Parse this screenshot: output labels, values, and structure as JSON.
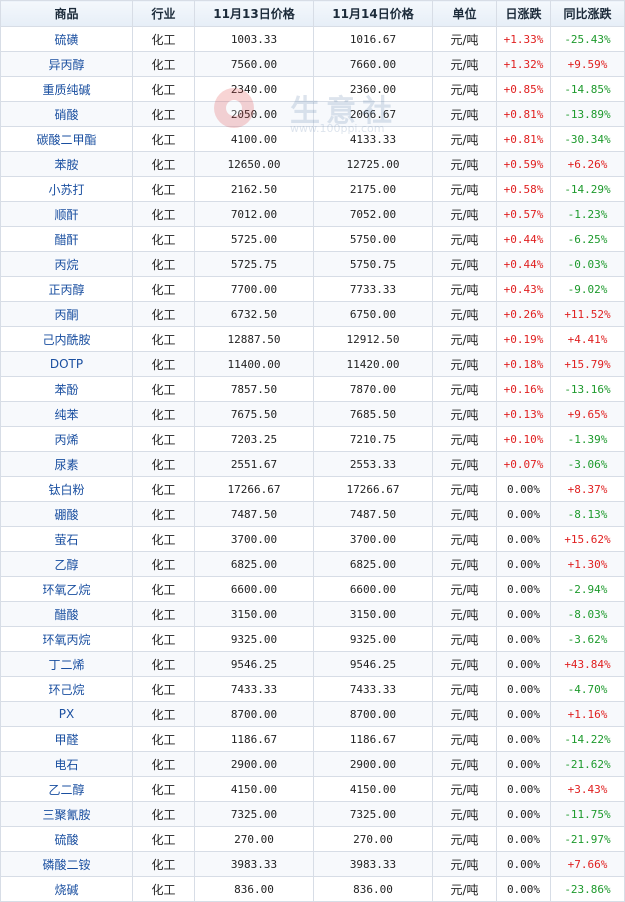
{
  "columns": [
    "商品",
    "行业",
    "11月13日价格",
    "11月14日价格",
    "单位",
    "日涨跌",
    "同比涨跌"
  ],
  "watermark": {
    "text": "生意社",
    "url": "www.100ppi.com"
  },
  "colors": {
    "up": "#e02020",
    "down": "#1d9a2c",
    "link": "#1a4fa0",
    "border": "#d7dde6"
  },
  "rows": [
    {
      "name": "硫磺",
      "industry": "化工",
      "price1": "1003.33",
      "price2": "1016.67",
      "unit": "元/吨",
      "daily": "+1.33%",
      "yoy": "-25.43%"
    },
    {
      "name": "异丙醇",
      "industry": "化工",
      "price1": "7560.00",
      "price2": "7660.00",
      "unit": "元/吨",
      "daily": "+1.32%",
      "yoy": "+9.59%"
    },
    {
      "name": "重质纯碱",
      "industry": "化工",
      "price1": "2340.00",
      "price2": "2360.00",
      "unit": "元/吨",
      "daily": "+0.85%",
      "yoy": "-14.85%"
    },
    {
      "name": "硝酸",
      "industry": "化工",
      "price1": "2050.00",
      "price2": "2066.67",
      "unit": "元/吨",
      "daily": "+0.81%",
      "yoy": "-13.89%"
    },
    {
      "name": "碳酸二甲酯",
      "industry": "化工",
      "price1": "4100.00",
      "price2": "4133.33",
      "unit": "元/吨",
      "daily": "+0.81%",
      "yoy": "-30.34%"
    },
    {
      "name": "苯胺",
      "industry": "化工",
      "price1": "12650.00",
      "price2": "12725.00",
      "unit": "元/吨",
      "daily": "+0.59%",
      "yoy": "+6.26%"
    },
    {
      "name": "小苏打",
      "industry": "化工",
      "price1": "2162.50",
      "price2": "2175.00",
      "unit": "元/吨",
      "daily": "+0.58%",
      "yoy": "-14.29%"
    },
    {
      "name": "顺酐",
      "industry": "化工",
      "price1": "7012.00",
      "price2": "7052.00",
      "unit": "元/吨",
      "daily": "+0.57%",
      "yoy": "-1.23%"
    },
    {
      "name": "醋酐",
      "industry": "化工",
      "price1": "5725.00",
      "price2": "5750.00",
      "unit": "元/吨",
      "daily": "+0.44%",
      "yoy": "-6.25%"
    },
    {
      "name": "丙烷",
      "industry": "化工",
      "price1": "5725.75",
      "price2": "5750.75",
      "unit": "元/吨",
      "daily": "+0.44%",
      "yoy": "-0.03%"
    },
    {
      "name": "正丙醇",
      "industry": "化工",
      "price1": "7700.00",
      "price2": "7733.33",
      "unit": "元/吨",
      "daily": "+0.43%",
      "yoy": "-9.02%"
    },
    {
      "name": "丙酮",
      "industry": "化工",
      "price1": "6732.50",
      "price2": "6750.00",
      "unit": "元/吨",
      "daily": "+0.26%",
      "yoy": "+11.52%"
    },
    {
      "name": "己内酰胺",
      "industry": "化工",
      "price1": "12887.50",
      "price2": "12912.50",
      "unit": "元/吨",
      "daily": "+0.19%",
      "yoy": "+4.41%"
    },
    {
      "name": "DOTP",
      "industry": "化工",
      "price1": "11400.00",
      "price2": "11420.00",
      "unit": "元/吨",
      "daily": "+0.18%",
      "yoy": "+15.79%"
    },
    {
      "name": "苯酚",
      "industry": "化工",
      "price1": "7857.50",
      "price2": "7870.00",
      "unit": "元/吨",
      "daily": "+0.16%",
      "yoy": "-13.16%"
    },
    {
      "name": "纯苯",
      "industry": "化工",
      "price1": "7675.50",
      "price2": "7685.50",
      "unit": "元/吨",
      "daily": "+0.13%",
      "yoy": "+9.65%"
    },
    {
      "name": "丙烯",
      "industry": "化工",
      "price1": "7203.25",
      "price2": "7210.75",
      "unit": "元/吨",
      "daily": "+0.10%",
      "yoy": "-1.39%"
    },
    {
      "name": "尿素",
      "industry": "化工",
      "price1": "2551.67",
      "price2": "2553.33",
      "unit": "元/吨",
      "daily": "+0.07%",
      "yoy": "-3.06%"
    },
    {
      "name": "钛白粉",
      "industry": "化工",
      "price1": "17266.67",
      "price2": "17266.67",
      "unit": "元/吨",
      "daily": "0.00%",
      "yoy": "+8.37%"
    },
    {
      "name": "硼酸",
      "industry": "化工",
      "price1": "7487.50",
      "price2": "7487.50",
      "unit": "元/吨",
      "daily": "0.00%",
      "yoy": "-8.13%"
    },
    {
      "name": "萤石",
      "industry": "化工",
      "price1": "3700.00",
      "price2": "3700.00",
      "unit": "元/吨",
      "daily": "0.00%",
      "yoy": "+15.62%"
    },
    {
      "name": "乙醇",
      "industry": "化工",
      "price1": "6825.00",
      "price2": "6825.00",
      "unit": "元/吨",
      "daily": "0.00%",
      "yoy": "+1.30%"
    },
    {
      "name": "环氧乙烷",
      "industry": "化工",
      "price1": "6600.00",
      "price2": "6600.00",
      "unit": "元/吨",
      "daily": "0.00%",
      "yoy": "-2.94%"
    },
    {
      "name": "醋酸",
      "industry": "化工",
      "price1": "3150.00",
      "price2": "3150.00",
      "unit": "元/吨",
      "daily": "0.00%",
      "yoy": "-8.03%"
    },
    {
      "name": "环氧丙烷",
      "industry": "化工",
      "price1": "9325.00",
      "price2": "9325.00",
      "unit": "元/吨",
      "daily": "0.00%",
      "yoy": "-3.62%"
    },
    {
      "name": "丁二烯",
      "industry": "化工",
      "price1": "9546.25",
      "price2": "9546.25",
      "unit": "元/吨",
      "daily": "0.00%",
      "yoy": "+43.84%"
    },
    {
      "name": "环己烷",
      "industry": "化工",
      "price1": "7433.33",
      "price2": "7433.33",
      "unit": "元/吨",
      "daily": "0.00%",
      "yoy": "-4.70%"
    },
    {
      "name": "PX",
      "industry": "化工",
      "price1": "8700.00",
      "price2": "8700.00",
      "unit": "元/吨",
      "daily": "0.00%",
      "yoy": "+1.16%"
    },
    {
      "name": "甲醛",
      "industry": "化工",
      "price1": "1186.67",
      "price2": "1186.67",
      "unit": "元/吨",
      "daily": "0.00%",
      "yoy": "-14.22%"
    },
    {
      "name": "电石",
      "industry": "化工",
      "price1": "2900.00",
      "price2": "2900.00",
      "unit": "元/吨",
      "daily": "0.00%",
      "yoy": "-21.62%"
    },
    {
      "name": "乙二醇",
      "industry": "化工",
      "price1": "4150.00",
      "price2": "4150.00",
      "unit": "元/吨",
      "daily": "0.00%",
      "yoy": "+3.43%"
    },
    {
      "name": "三聚氰胺",
      "industry": "化工",
      "price1": "7325.00",
      "price2": "7325.00",
      "unit": "元/吨",
      "daily": "0.00%",
      "yoy": "-11.75%"
    },
    {
      "name": "硫酸",
      "industry": "化工",
      "price1": "270.00",
      "price2": "270.00",
      "unit": "元/吨",
      "daily": "0.00%",
      "yoy": "-21.97%"
    },
    {
      "name": "磷酸二铵",
      "industry": "化工",
      "price1": "3983.33",
      "price2": "3983.33",
      "unit": "元/吨",
      "daily": "0.00%",
      "yoy": "+7.66%"
    },
    {
      "name": "烧碱",
      "industry": "化工",
      "price1": "836.00",
      "price2": "836.00",
      "unit": "元/吨",
      "daily": "0.00%",
      "yoy": "-23.86%"
    }
  ]
}
